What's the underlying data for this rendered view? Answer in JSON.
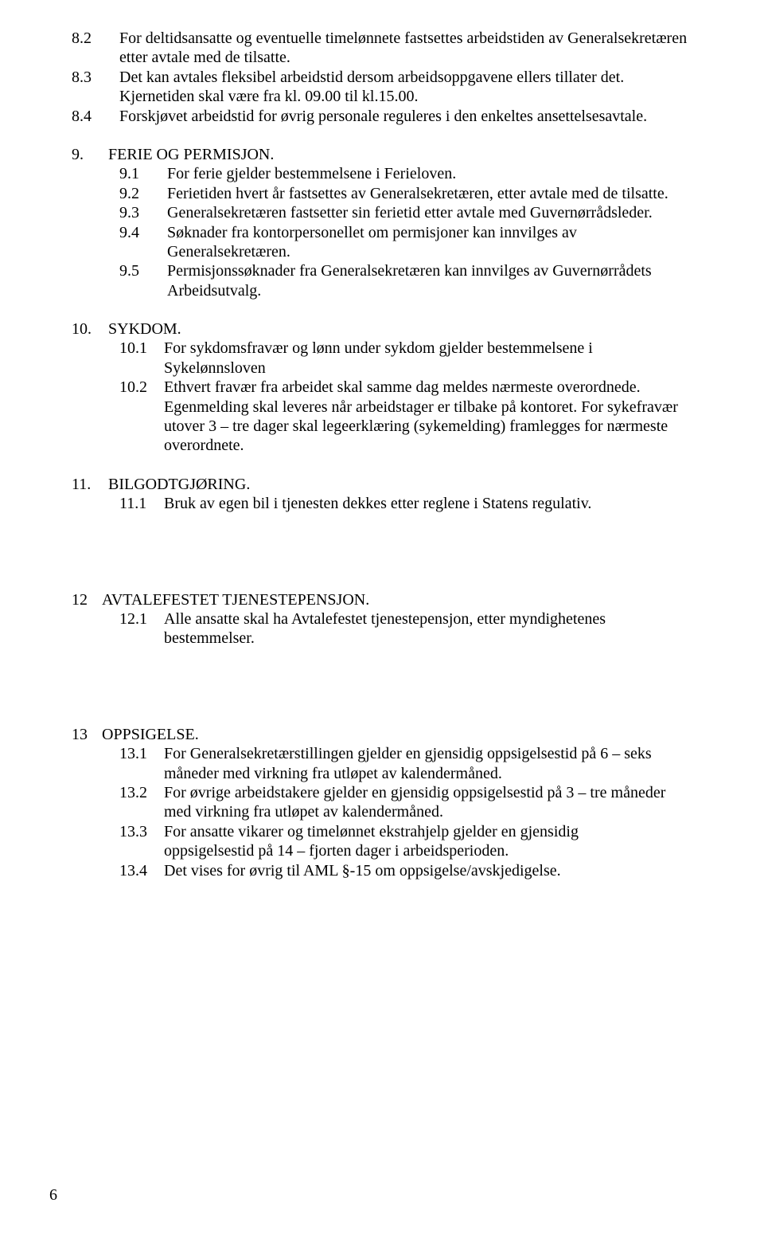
{
  "typography": {
    "font_family": "Times New Roman",
    "body_fontsize_pt": 12,
    "line_height": 1.22,
    "text_color": "#000000",
    "background_color": "#ffffff"
  },
  "sec8": {
    "p2num": "8.2",
    "p2": "For deltidsansatte og eventuelle timelønnete fastsettes arbeidstiden av Generalsekretæren etter avtale med de tilsatte.",
    "p3num": "8.3",
    "p3": "Det kan avtales fleksibel arbeidstid dersom arbeidsoppgavene ellers tillater det. Kjernetiden skal være fra kl. 09.00 til kl.15.00.",
    "p4num": "8.4",
    "p4": "Forskjøvet arbeidstid for øvrig personale reguleres i den enkeltes ansettelsesavtale."
  },
  "sec9": {
    "hnum": "9.",
    "htitle": "FERIE OG PERMISJON.",
    "p1num": "9.1",
    "p1": "For ferie gjelder bestemmelsene i Ferieloven.",
    "p2num": "9.2",
    "p2": "Ferietiden hvert år fastsettes av Generalsekretæren, etter avtale med de tilsatte.",
    "p3num": "9.3",
    "p3": "Generalsekretæren fastsetter sin ferietid etter avtale med Guvernørrådsleder.",
    "p4num": "9.4",
    "p4": "Søknader fra kontorpersonellet om permisjoner kan innvilges av Generalsekretæren.",
    "p5num": "9.5",
    "p5": "Permisjonssøknader fra Generalsekretæren kan innvilges av Guvernørrådets Arbeidsutvalg."
  },
  "sec10": {
    "hnum": "10.",
    "htitle": "SYKDOM.",
    "p1num": "10.1",
    "p1a": "For sykdomsfravær og lønn under sykdom gjelder bestemmelsene i",
    "p1b": "Sykelønnsloven",
    "p2num": "10.2",
    "p2a": "Ethvert fravær fra arbeidet skal samme dag meldes nærmeste overordnede.",
    "p2b": "Egenmelding skal leveres når arbeidstager er tilbake på kontoret.  For sykefravær utover 3 – tre dager skal legeerklæring (sykemelding) framlegges for nærmeste overordnete."
  },
  "sec11": {
    "hnum": "11.",
    "htitle": "BILGODTGJØRING.",
    "p1num": "11.1",
    "p1": "Bruk av egen bil i tjenesten dekkes etter reglene i Statens regulativ."
  },
  "sec12": {
    "hnum": "12",
    "htitle": "AVTALEFESTET TJENESTEPENSJON.",
    "p1num": "12.1",
    "p1a": "Alle ansatte skal ha Avtalefestet tjenestepensjon, etter myndighetenes",
    "p1b": "bestemmelser."
  },
  "sec13": {
    "hnum": "13",
    "htitle": "OPPSIGELSE.",
    "p1num": "13.1",
    "p1": "For Generalsekretærstillingen gjelder en gjensidig oppsigelsestid på 6 – seks måneder med virkning fra utløpet av kalendermåned.",
    "p2num": "13.2",
    "p2": "For øvrige arbeidstakere gjelder en gjensidig oppsigelsestid på 3 – tre måneder med virkning fra utløpet av kalendermåned.",
    "p3num": "13.3",
    "p3a": " For ansatte vikarer og timelønnet ekstrahjelp gjelder en gjensidig",
    "p3b": "oppsigelsestid på 14 – fjorten dager i arbeidsperioden.",
    "p4num": "13.4",
    "p4": "Det vises for øvrig til AML §-15 om oppsigelse/avskjedigelse."
  },
  "page_number": "6"
}
